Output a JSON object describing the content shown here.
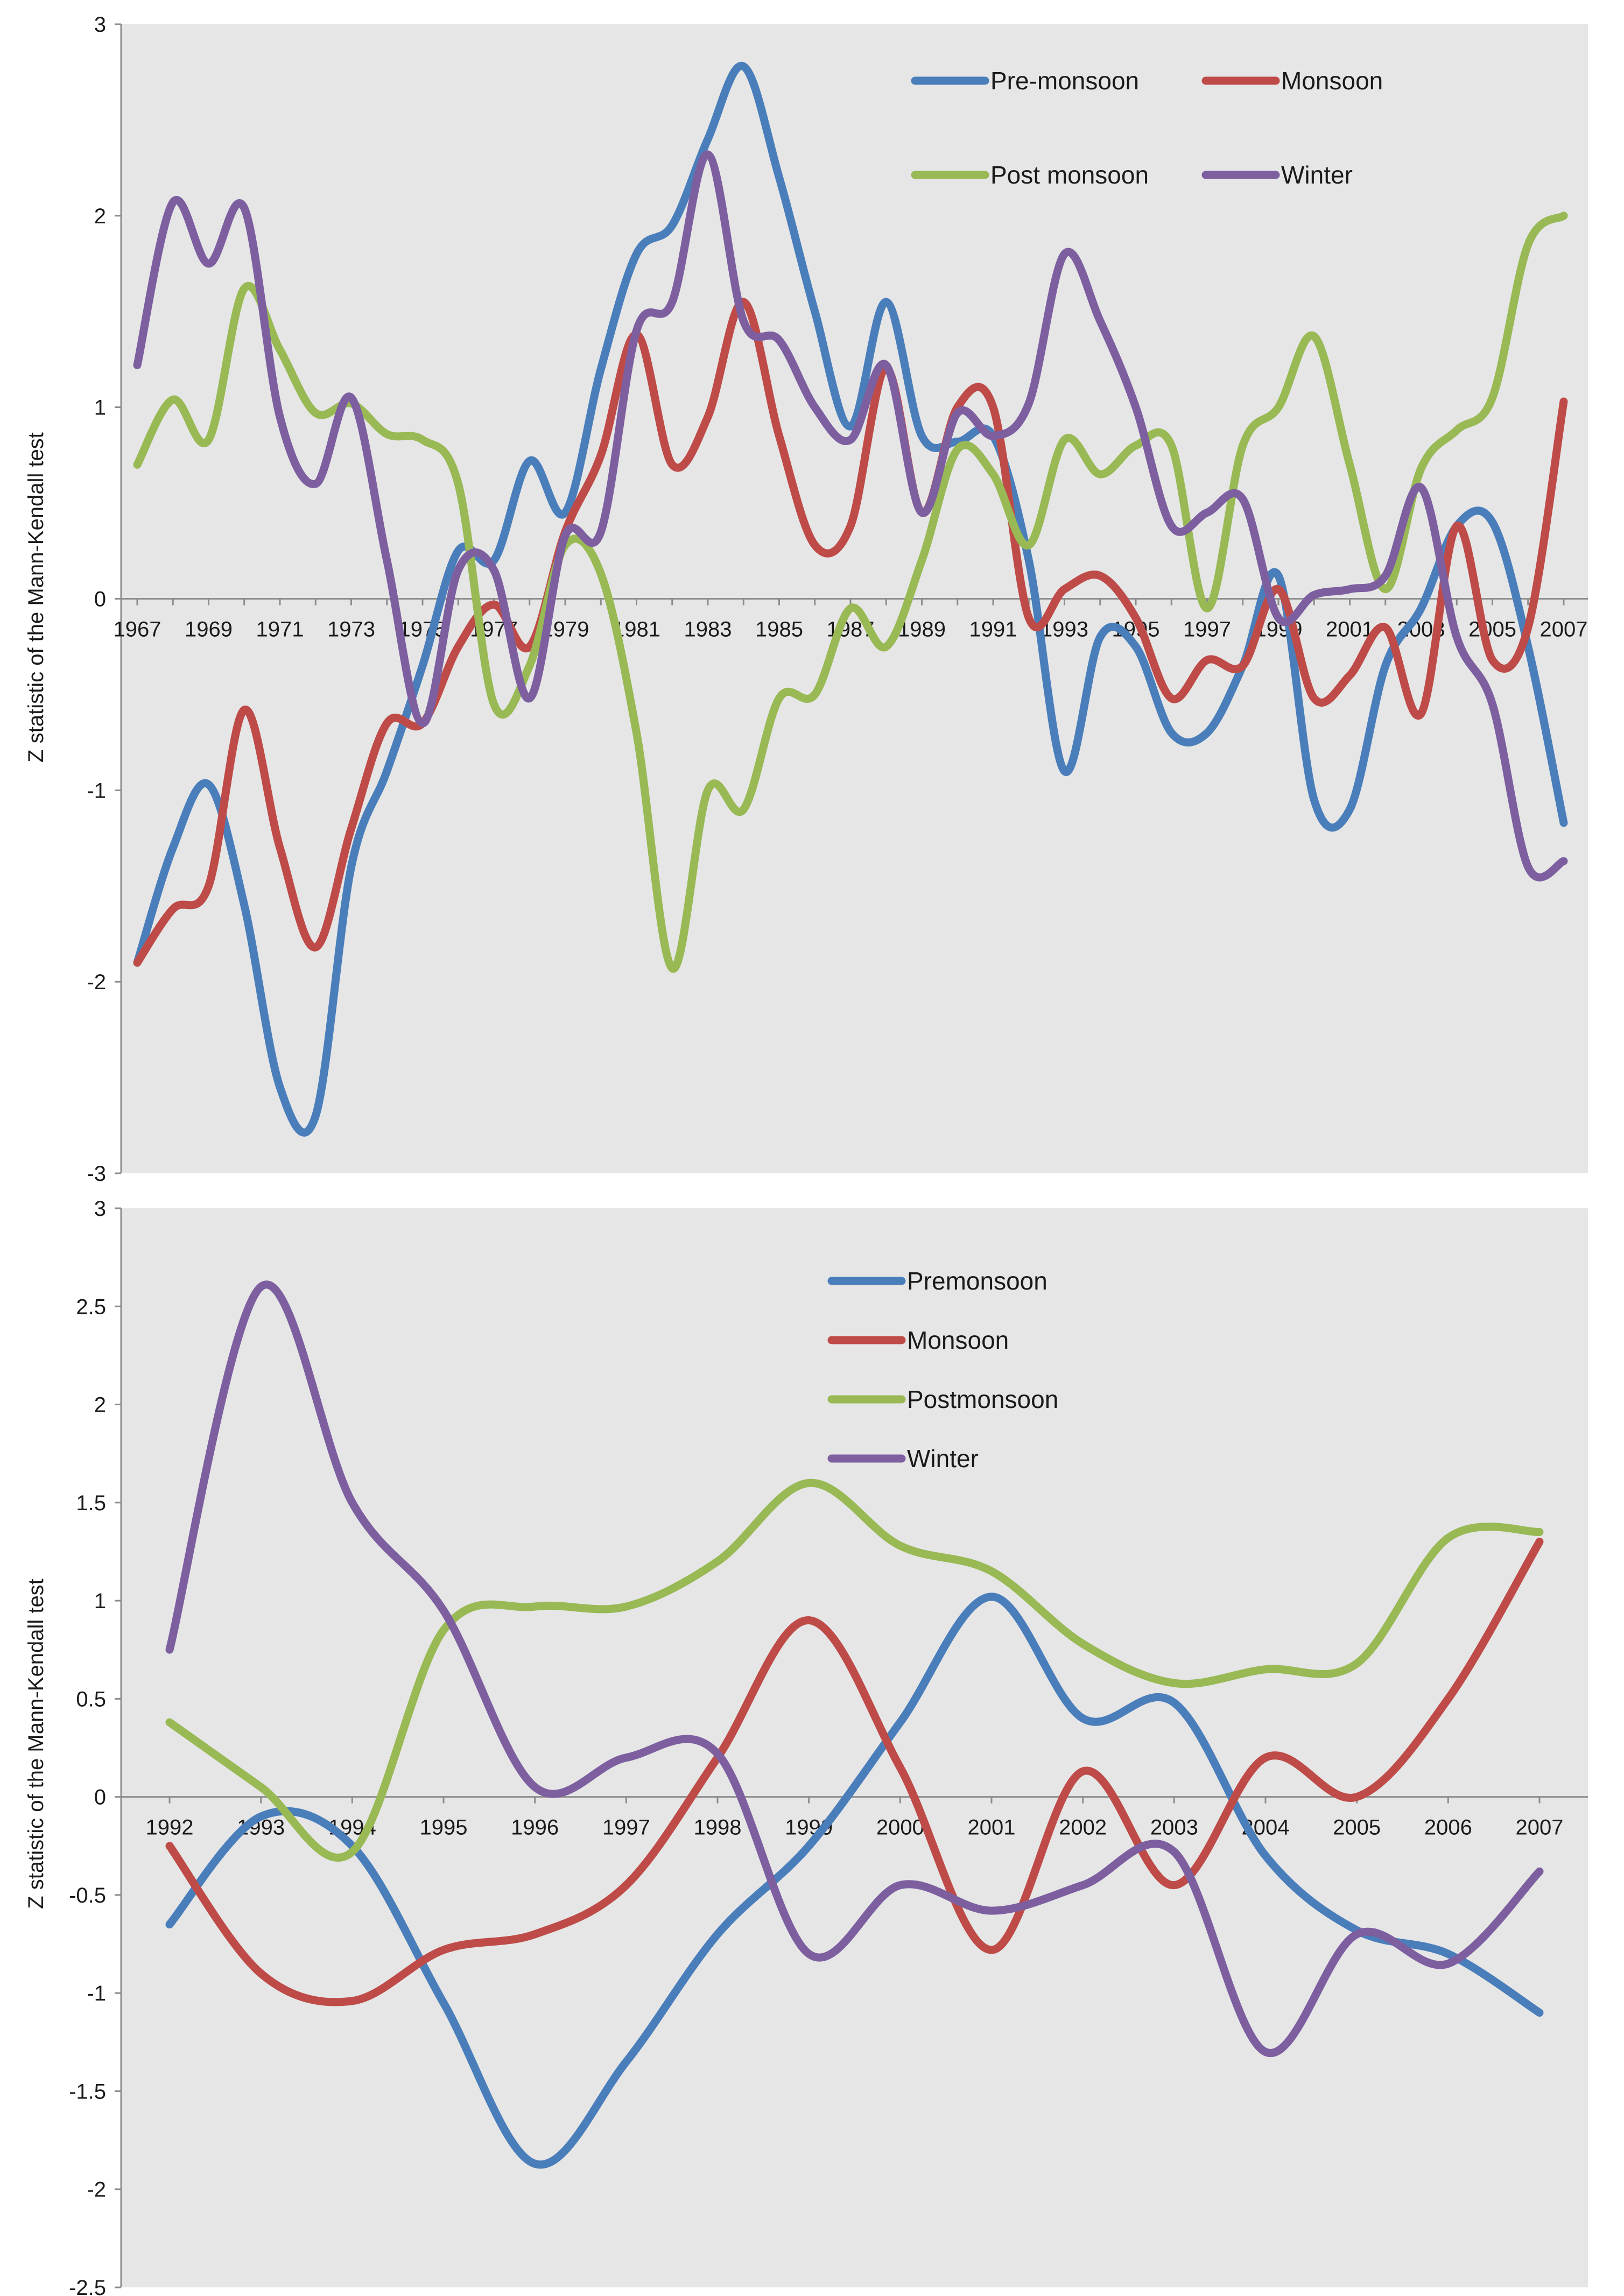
{
  "chart_data": [
    {
      "type": "line",
      "ylabel": "Z statistic of the Mann-Kendall test",
      "ylim": [
        -3,
        3
      ],
      "yticks": [
        "3",
        "2",
        "1",
        "0",
        "-1",
        "-2",
        "-3"
      ],
      "x": [
        1967,
        1968,
        1969,
        1970,
        1971,
        1972,
        1973,
        1974,
        1975,
        1976,
        1977,
        1978,
        1979,
        1980,
        1981,
        1982,
        1983,
        1984,
        1985,
        1986,
        1987,
        1988,
        1989,
        1990,
        1991,
        1992,
        1993,
        1994,
        1995,
        1996,
        1997,
        1998,
        1999,
        2000,
        2001,
        2002,
        2003,
        2004,
        2005,
        2006,
        2007
      ],
      "xticklabels": [
        "1967",
        "1969",
        "1971",
        "1973",
        "1975",
        "1977",
        "1979",
        "1981",
        "1983",
        "1985",
        "1987",
        "1989",
        "1991",
        "1993",
        "1995",
        "1997",
        "1999",
        "2001",
        "2003",
        "2005",
        "2007"
      ],
      "grid": false,
      "legend_position": "top-right",
      "series": [
        {
          "name": "Pre-monsoon",
          "color": "#4a7ebb",
          "values": [
            -1.9,
            -1.3,
            -0.97,
            -1.6,
            -2.55,
            -2.7,
            -1.4,
            -0.9,
            -0.35,
            0.25,
            0.2,
            0.72,
            0.45,
            1.2,
            1.8,
            1.95,
            2.4,
            2.78,
            2.2,
            1.5,
            0.9,
            1.55,
            0.85,
            0.82,
            0.85,
            0.2,
            -0.9,
            -0.2,
            -0.25,
            -0.7,
            -0.7,
            -0.35,
            0.12,
            -1.05,
            -1.1,
            -0.35,
            -0.05,
            0.38,
            0.4,
            -0.25,
            -1.17
          ]
        },
        {
          "name": "Monsoon",
          "color": "#be4b48",
          "values": [
            -1.9,
            -1.62,
            -1.5,
            -0.58,
            -1.3,
            -1.82,
            -1.2,
            -0.65,
            -0.65,
            -0.25,
            -0.03,
            -0.25,
            0.35,
            0.75,
            1.38,
            0.7,
            0.95,
            1.55,
            0.85,
            0.28,
            0.38,
            1.2,
            0.45,
            1.0,
            1.0,
            -0.1,
            0.05,
            0.12,
            -0.1,
            -0.52,
            -0.32,
            -0.35,
            0.05,
            -0.52,
            -0.4,
            -0.15,
            -0.6,
            0.38,
            -0.32,
            -0.15,
            1.03
          ]
        },
        {
          "name": "Post monsoon",
          "color": "#98b954",
          "values": [
            0.7,
            1.04,
            0.83,
            1.62,
            1.3,
            0.97,
            1.02,
            0.86,
            0.83,
            0.6,
            -0.55,
            -0.35,
            0.28,
            0.13,
            -0.7,
            -1.93,
            -1.0,
            -1.1,
            -0.52,
            -0.5,
            -0.05,
            -0.25,
            0.2,
            0.78,
            0.65,
            0.28,
            0.83,
            0.65,
            0.8,
            0.8,
            -0.05,
            0.8,
            1.0,
            1.37,
            0.7,
            0.05,
            0.68,
            0.88,
            1.05,
            1.85,
            2.0
          ]
        },
        {
          "name": "Winter",
          "color": "#7d5fa0",
          "values": [
            1.22,
            2.07,
            1.75,
            2.04,
            0.95,
            0.6,
            1.05,
            0.2,
            -0.65,
            0.15,
            0.15,
            -0.52,
            0.33,
            0.35,
            1.4,
            1.55,
            2.32,
            1.45,
            1.35,
            1.0,
            0.83,
            1.22,
            0.45,
            0.97,
            0.85,
            1.02,
            1.8,
            1.45,
            1.0,
            0.38,
            0.45,
            0.52,
            -0.1,
            0.02,
            0.05,
            0.12,
            0.58,
            -0.2,
            -0.55,
            -1.4,
            -1.37
          ]
        }
      ]
    },
    {
      "type": "line",
      "ylabel": "Z statistic of the Mann-Kendall test",
      "ylim": [
        -2.5,
        3
      ],
      "yticks": [
        "3",
        "2.5",
        "2",
        "1.5",
        "1",
        "0.5",
        "0",
        "-0.5",
        "-1",
        "-1.5",
        "-2",
        "-2.5"
      ],
      "x": [
        1992,
        1993,
        1994,
        1995,
        1996,
        1997,
        1998,
        1999,
        2000,
        2001,
        2002,
        2003,
        2004,
        2005,
        2006,
        2007
      ],
      "xticklabels": [
        "1992",
        "1993",
        "1994",
        "1995",
        "1996",
        "1997",
        "1998",
        "1999",
        "2000",
        "2001",
        "2002",
        "2003",
        "2004",
        "2005",
        "2006",
        "2007"
      ],
      "grid": false,
      "legend_position": "top-center",
      "series": [
        {
          "name": "Premonsoon",
          "color": "#4a7ebb",
          "values": [
            -0.65,
            -0.1,
            -0.25,
            -1.05,
            -1.87,
            -1.35,
            -0.7,
            -0.25,
            0.38,
            1.02,
            0.4,
            0.48,
            -0.3,
            -0.68,
            -0.8,
            -1.1
          ]
        },
        {
          "name": "Monsoon",
          "color": "#be4b48",
          "values": [
            -0.25,
            -0.9,
            -1.04,
            -0.78,
            -0.7,
            -0.45,
            0.2,
            0.9,
            0.15,
            -0.78,
            0.13,
            -0.45,
            0.2,
            0.0,
            0.5,
            1.3
          ]
        },
        {
          "name": "Postmonsoon",
          "color": "#98b954",
          "values": [
            0.38,
            0.05,
            -0.28,
            0.85,
            0.97,
            0.97,
            1.2,
            1.6,
            1.28,
            1.15,
            0.78,
            0.58,
            0.65,
            0.68,
            1.32,
            1.35
          ]
        },
        {
          "name": "Winter",
          "color": "#7d5fa0",
          "values": [
            0.75,
            2.6,
            1.5,
            0.95,
            0.05,
            0.2,
            0.22,
            -0.8,
            -0.45,
            -0.58,
            -0.45,
            -0.28,
            -1.3,
            -0.7,
            -0.85,
            -0.38
          ]
        }
      ]
    }
  ]
}
